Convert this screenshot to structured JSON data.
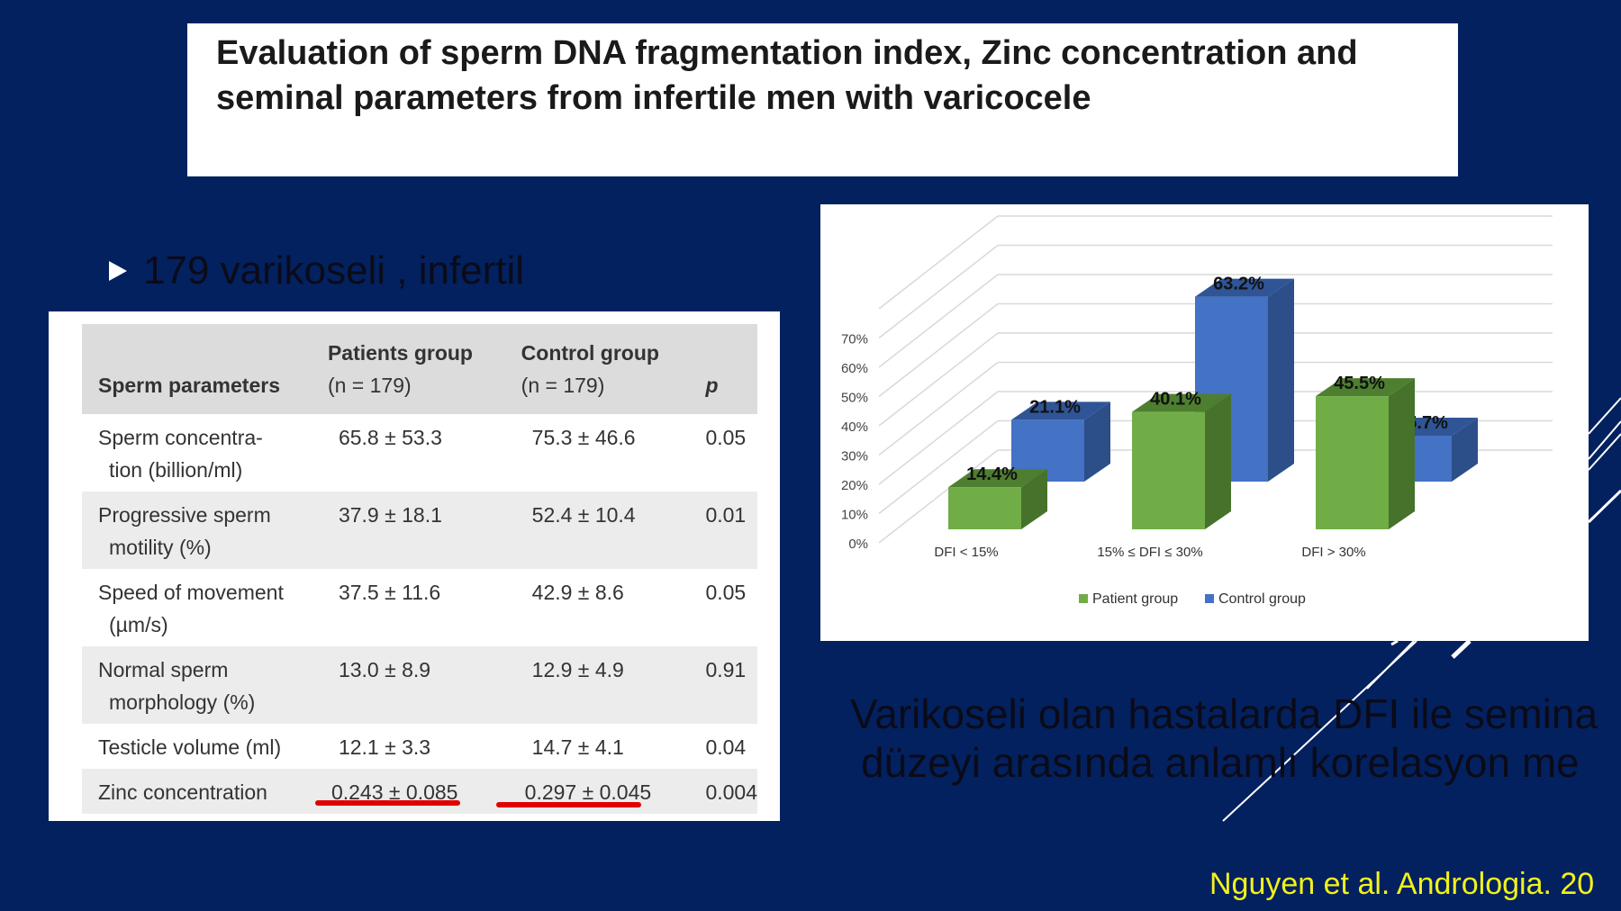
{
  "title": "Evaluation of sperm DNA fragmentation index, Zinc concentration and seminal parameters from infertile men with varicocele",
  "bullet": "179 varikoseli , infertil",
  "table": {
    "headers": [
      "Sperm parameters",
      "Patients group",
      "(n = 179)",
      "Control group",
      "(n = 179)",
      "p"
    ],
    "rows": [
      {
        "param": [
          "Sperm concentra-",
          "tion (billion/ml)"
        ],
        "patients": "65.8 ± 53.3",
        "control": "75.3 ± 46.6",
        "p": "0.05"
      },
      {
        "param": [
          "Progressive sperm",
          "motility (%)"
        ],
        "patients": "37.9 ± 18.1",
        "control": "52.4 ± 10.4",
        "p": "0.01"
      },
      {
        "param": [
          "Speed of movement",
          "(µm/s)"
        ],
        "patients": "37.5 ± 11.6",
        "control": "42.9 ± 8.6",
        "p": "0.05"
      },
      {
        "param": [
          "Normal sperm",
          "morphology (%)"
        ],
        "patients": "13.0 ± 8.9",
        "control": "12.9 ± 4.9",
        "p": "0.91"
      },
      {
        "param": [
          "Testicle volume (ml)",
          ""
        ],
        "patients": "12.1 ± 3.3",
        "control": "14.7 ± 4.1",
        "p": "0.04"
      },
      {
        "param": [
          "Zinc concentration",
          ""
        ],
        "patients": "0.243 ± 0.085",
        "control": "0.297 ± 0.045",
        "p": "0.004"
      }
    ]
  },
  "chart_data": {
    "type": "bar",
    "categories": [
      "DFI < 15%",
      "15% ≤ DFI ≤ 30%",
      "DFI > 30%"
    ],
    "series": [
      {
        "name": "Patient group",
        "values": [
          14.4,
          40.1,
          45.5
        ],
        "labels": [
          "14.4%",
          "40.1%",
          "45.5%"
        ],
        "color": "#70ad47"
      },
      {
        "name": "Control group",
        "values": [
          21.1,
          63.2,
          15.7
        ],
        "labels": [
          "21.1%",
          "63.2%",
          "15.7%"
        ],
        "color": "#4472c4"
      }
    ],
    "yticks": [
      "0%",
      "10%",
      "20%",
      "30%",
      "40%",
      "50%",
      "60%",
      "70%"
    ],
    "ylim": [
      0,
      70
    ],
    "legend": "bottom",
    "grid": true
  },
  "bottom_text": [
    "Varikoseli olan hastalarda DFI ile semina",
    "düzeyi arasında anlamlı korelasyon me"
  ],
  "citation": "Nguyen et al. Andrologia. 20",
  "colors": {
    "background": "#03215f",
    "citation": "#f2f21a",
    "underline": "#e00000"
  }
}
